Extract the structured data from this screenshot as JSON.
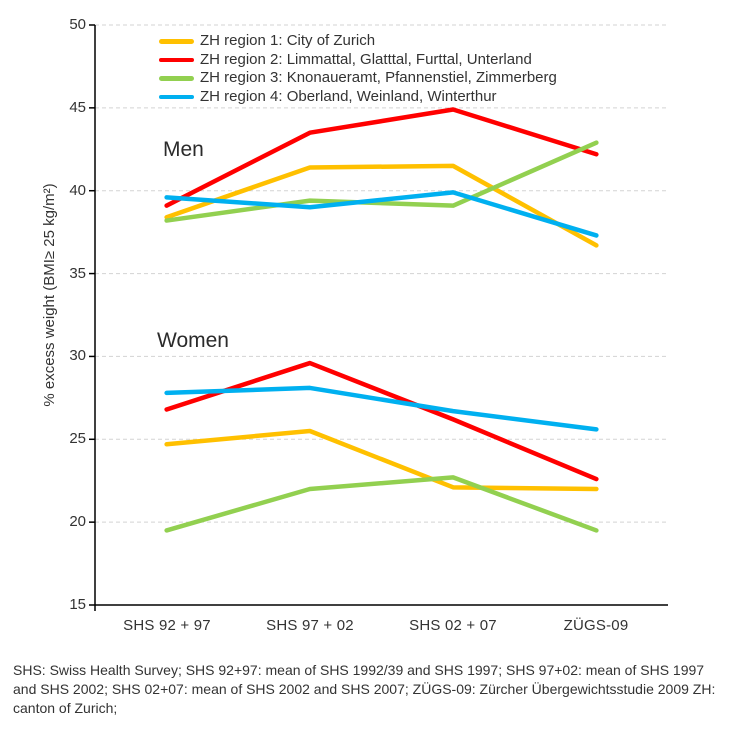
{
  "chart_data": {
    "type": "line",
    "title": "",
    "categories": [
      "SHS 92 + 97",
      "SHS 97 + 02",
      "SHS 02 + 07",
      "ZÜGS-09"
    ],
    "ylabel": "% excess weight (BMI≥ 25 kg/m²)",
    "xlabel": "",
    "ylim": [
      15,
      50
    ],
    "ytick_interval": 5,
    "yticks": [
      "50",
      "45",
      "40",
      "35",
      "30",
      "25",
      "20",
      "15"
    ],
    "grid": {
      "horizontal": true,
      "style": "dashed",
      "color": "#d3d3d3"
    },
    "axis_color": "#000000",
    "legend_position": "top-left-inside",
    "group_labels": {
      "men": "Men",
      "women": "Women"
    },
    "series": [
      {
        "name": "ZH region 1: City of Zurich",
        "color": "#FFC000",
        "men": [
          38.4,
          41.4,
          41.5,
          36.7
        ],
        "women": [
          24.7,
          25.5,
          22.1,
          22.0
        ]
      },
      {
        "name": "ZH region 2: Limmattal, Glatttal, Furttal, Unterland",
        "color": "#FF0000",
        "men": [
          39.1,
          43.5,
          44.9,
          42.2
        ],
        "women": [
          26.8,
          29.6,
          26.2,
          22.6
        ]
      },
      {
        "name": "ZH region 3: Knonaueramt, Pfannenstiel, Zimmerberg",
        "color": "#92D050",
        "men": [
          38.2,
          39.4,
          39.1,
          42.9
        ],
        "women": [
          19.5,
          22.0,
          22.7,
          19.5
        ]
      },
      {
        "name": "ZH region 4: Oberland, Weinland, Winterthur",
        "color": "#00B0F0",
        "men": [
          39.6,
          39.0,
          39.9,
          37.3
        ],
        "women": [
          27.8,
          28.1,
          26.7,
          25.6
        ]
      }
    ]
  },
  "footnote": {
    "lines": [
      "SHS: Swiss Health Survey; SHS 92+97: mean of SHS 1992/39 and SHS 1997; SHS 97+02: mean of SHS 1997",
      "and SHS 2002; SHS 02+07: mean of SHS 2002 and SHS 2007; ZÜGS-09: Zürcher Übergewichtsstudie 2009 ZH:",
      "canton of Zurich;"
    ]
  }
}
